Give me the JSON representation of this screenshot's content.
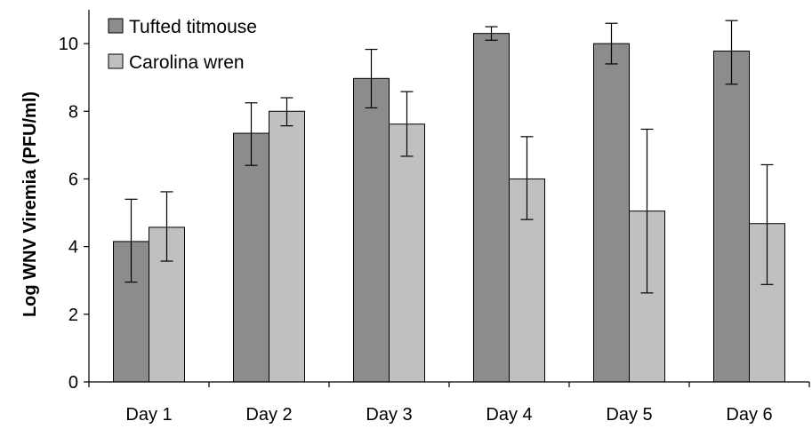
{
  "chart_data": {
    "type": "bar",
    "title": "",
    "xlabel": "",
    "ylabel": "Log WNV Viremia (PFU/ml)",
    "ylim": [
      0,
      11
    ],
    "yticks": [
      0,
      2,
      4,
      6,
      8,
      10
    ],
    "grid": false,
    "legend_position": "top-left",
    "categories": [
      "Day 1",
      "Day 2",
      "Day 3",
      "Day 4",
      "Day 5",
      "Day 6"
    ],
    "series": [
      {
        "name": "Tufted titmouse",
        "color": "#8c8c8c",
        "values": [
          4.15,
          7.35,
          8.97,
          10.3,
          10.0,
          9.78
        ],
        "error_low": [
          2.95,
          6.4,
          8.1,
          10.1,
          9.4,
          8.8
        ],
        "error_high": [
          5.4,
          8.25,
          9.83,
          10.5,
          10.6,
          10.68
        ]
      },
      {
        "name": "Carolina wren",
        "color": "#c0c0c0",
        "values": [
          4.57,
          8.0,
          7.62,
          6.0,
          5.05,
          4.68
        ],
        "error_low": [
          3.57,
          7.57,
          6.67,
          4.8,
          2.63,
          2.88
        ],
        "error_high": [
          5.62,
          8.4,
          8.58,
          7.25,
          7.47,
          6.42
        ]
      }
    ]
  }
}
